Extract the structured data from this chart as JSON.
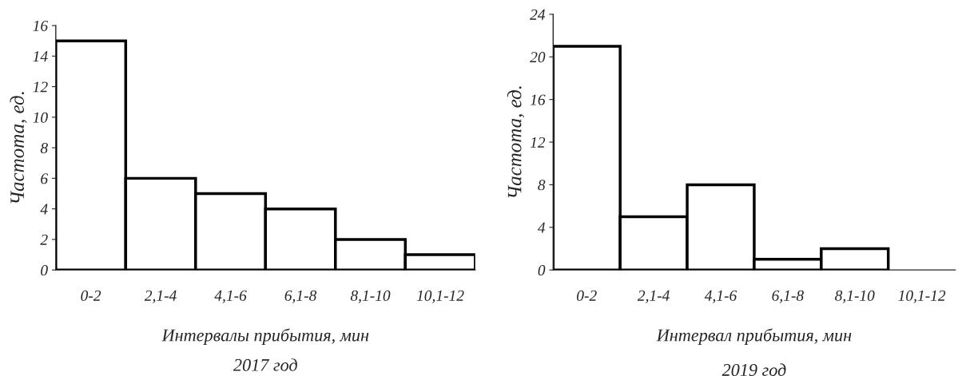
{
  "chart_data": [
    {
      "type": "bar",
      "title": "2017 год",
      "xlabel": "Интервалы прибытия, мин",
      "ylabel": "Частота, ед.",
      "categories": [
        "0-2",
        "2,1-4",
        "4,1-6",
        "6,1-8",
        "8,1-10",
        "10,1-12"
      ],
      "values": [
        15,
        6,
        5,
        4,
        2,
        1
      ],
      "color": "#ffffff",
      "ylim": [
        0,
        16
      ],
      "yticks": [
        0,
        2,
        4,
        6,
        8,
        10,
        12,
        14,
        16
      ],
      "grid": false,
      "legend": false
    },
    {
      "type": "bar",
      "title": "2019 год",
      "xlabel": "Интервал прибытия, мин",
      "ylabel": "Частота, ед.",
      "categories": [
        "0-2",
        "2,1-4",
        "4,1-6",
        "6,1-8",
        "8,1-10",
        "10,1-12"
      ],
      "values": [
        21,
        5,
        8,
        1,
        2,
        null
      ],
      "color": "#ffffff",
      "ylim": [
        0,
        24
      ],
      "yticks": [
        0,
        4,
        8,
        12,
        16,
        20,
        24
      ],
      "grid": false,
      "legend": false
    }
  ]
}
